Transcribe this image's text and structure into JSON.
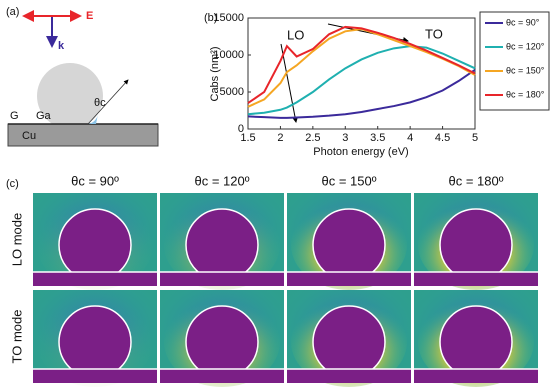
{
  "figure": {
    "panel_a": "(a)",
    "E": "E",
    "k": "k",
    "G": "G",
    "Ga": "Ga",
    "theta": "θc",
    "Cu": "Cu",
    "panel_b": "(b)",
    "panel_c": "(c)",
    "columns": [
      "θc = 90º",
      "θc = 120º",
      "θc = 150º",
      "θc = 180º"
    ],
    "rows": [
      "LO mode",
      "TO mode"
    ]
  },
  "chart_data": {
    "type": "line",
    "x_label": "Photon energy (eV)",
    "y_label": "Cabs (nm²)",
    "annotations": [
      "LO",
      "TO"
    ],
    "x": [
      1.5,
      1.75,
      2,
      2.1,
      2.25,
      2.5,
      2.75,
      3,
      3.25,
      3.5,
      3.75,
      4,
      4.25,
      4.5,
      4.75,
      5
    ],
    "series": [
      {
        "name": "θc = 90°",
        "color": "#3b2a9b",
        "values": [
          1700,
          1600,
          1500,
          1500,
          1550,
          1650,
          1800,
          2000,
          2300,
          2700,
          3100,
          3600,
          4300,
          5200,
          6500,
          8000
        ]
      },
      {
        "name": "θc = 120°",
        "color": "#1fb0b0",
        "values": [
          2000,
          2200,
          2600,
          2900,
          3600,
          5000,
          6700,
          8200,
          9400,
          10300,
          10900,
          11200,
          11000,
          10200,
          9200,
          8200
        ]
      },
      {
        "name": "θc = 150°",
        "color": "#f5a623",
        "values": [
          3000,
          4000,
          6200,
          7700,
          8600,
          10500,
          12200,
          13200,
          13500,
          12800,
          12000,
          11200,
          10400,
          9500,
          8500,
          7300
        ]
      },
      {
        "name": "θc = 180°",
        "color": "#e8252a",
        "values": [
          3500,
          5000,
          9200,
          11200,
          9800,
          10800,
          12800,
          13800,
          13600,
          13000,
          12300,
          11500,
          10600,
          9600,
          8600,
          7500
        ]
      }
    ],
    "xlim": [
      1.5,
      5
    ],
    "xticks": [
      1.5,
      2,
      2.5,
      3,
      3.5,
      4,
      4.5,
      5
    ],
    "ylim": [
      0,
      15000
    ],
    "yticks": [
      0,
      5000,
      10000,
      15000
    ],
    "grid": false,
    "legend": "right"
  }
}
